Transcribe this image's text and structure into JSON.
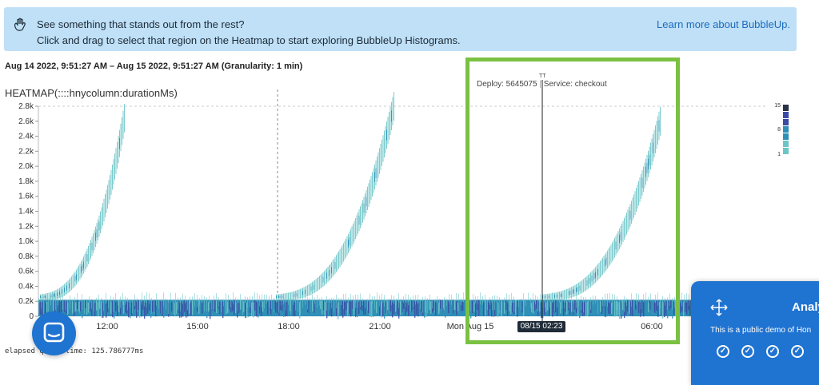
{
  "banner": {
    "icon": "hand-wave-icon",
    "line1": "See something that stands out from the rest?",
    "line2": "Click and drag to select that region on the Heatmap to start exploring BubbleUp Histograms.",
    "link": "Learn more about BubbleUp."
  },
  "time_range": "Aug 14 2022, 9:51:27 AM – Aug 15 2022, 9:51:27 AM (Granularity: 1 min)",
  "heatmap": {
    "title": "HEATMAP(::::hnycolumn:durationMs)",
    "deploy_marker": {
      "tt": "TT",
      "deploy": "Deploy: 5645075",
      "service": "Service: checkout"
    },
    "hover_timestamp": "08/15 02:23",
    "colors": {
      "low": "#6ec5c8",
      "mid": "#2f8fb6",
      "high": "#3b4aa3",
      "max": "#2a3345"
    }
  },
  "chart_data": {
    "type": "heatmap",
    "title": "HEATMAP(::::hnycolumn:durationMs)",
    "y_ticks": [
      "0",
      "0.2k",
      "0.4k",
      "0.6k",
      "0.8k",
      "1.0k",
      "1.2k",
      "1.4k",
      "1.6k",
      "1.8k",
      "2.0k",
      "2.2k",
      "2.4k",
      "2.6k",
      "2.8k"
    ],
    "ylim": [
      0,
      2800
    ],
    "x_ticks": [
      "12:00",
      "15:00",
      "18:00",
      "21:00",
      "Mon Aug 15",
      "06:00"
    ],
    "legend": {
      "labels": [
        "15",
        "8",
        "1"
      ],
      "range": [
        1,
        15
      ]
    },
    "cycles": [
      {
        "start": "09:51",
        "end": "12:30",
        "peak_ms": 2700
      },
      {
        "start": "18:00",
        "end": "21:45",
        "peak_ms": 2800
      },
      {
        "start": "02:23",
        "end": "06:30",
        "peak_ms": 2600
      }
    ],
    "baseline_band_ms": [
      0,
      220
    ],
    "grid": true
  },
  "elapsed": "elapsed query time: 125.786777ms",
  "tour_panel": {
    "title": "Analy",
    "description": "This is a public demo of Hon",
    "checks": [
      "✓",
      "✓",
      "✓",
      "✓"
    ]
  }
}
